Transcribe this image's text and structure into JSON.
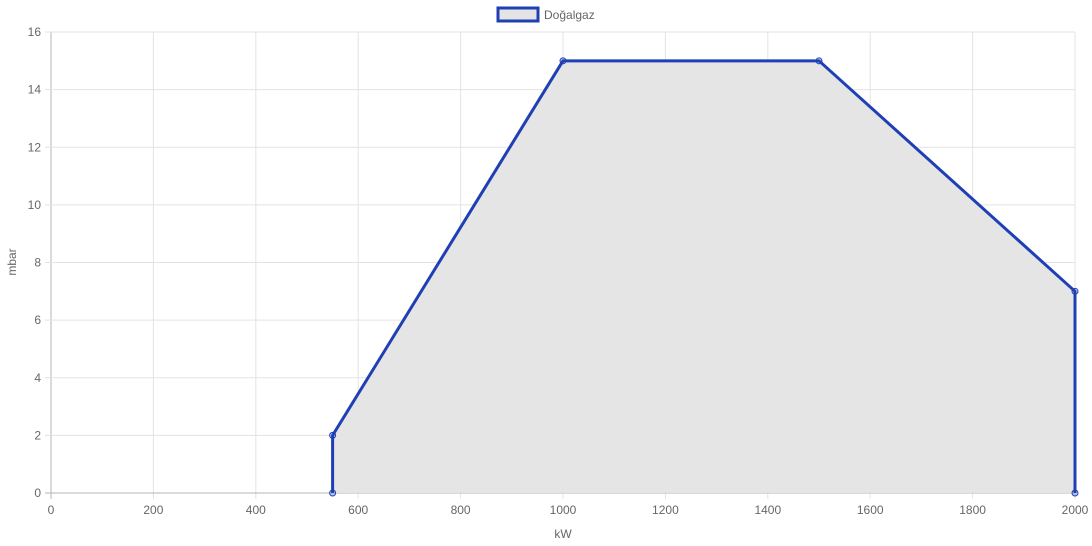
{
  "chart_data": {
    "type": "area",
    "xlabel": "kW",
    "ylabel": "mbar",
    "xlim": [
      0,
      2000
    ],
    "ylim": [
      0,
      16
    ],
    "x_ticks": [
      0,
      200,
      400,
      600,
      800,
      1000,
      1200,
      1400,
      1600,
      1800,
      2000
    ],
    "y_ticks": [
      0,
      2,
      4,
      6,
      8,
      10,
      12,
      14,
      16
    ],
    "grid": true,
    "legend": {
      "position": "top-center"
    },
    "series": [
      {
        "name": "Doğalgaz",
        "color": "#1f3fb4",
        "fill": "#e4e4e5",
        "points": [
          {
            "x": 550,
            "y": 0
          },
          {
            "x": 550,
            "y": 2
          },
          {
            "x": 1000,
            "y": 15
          },
          {
            "x": 1500,
            "y": 15
          },
          {
            "x": 2000,
            "y": 7
          },
          {
            "x": 2000,
            "y": 0
          }
        ]
      }
    ]
  }
}
